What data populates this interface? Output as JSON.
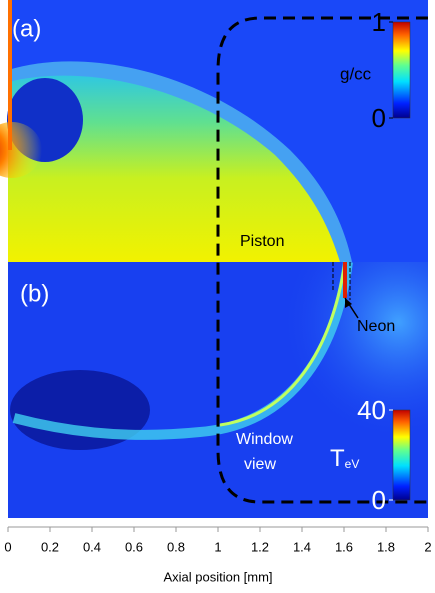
{
  "chart_data": {
    "type": "image",
    "xlabel": "Axial position [mm]",
    "xlim": [
      0,
      2
    ],
    "xticks": [
      0,
      0.2,
      0.4,
      0.6,
      0.8,
      1,
      1.2,
      1.4,
      1.6,
      1.8,
      2
    ],
    "panels": [
      {
        "label": "(a)",
        "colorbar": {
          "label": "g/cc",
          "clim": [
            0,
            1
          ],
          "ticks": [
            0,
            1
          ]
        },
        "annotations": [
          "Piston"
        ]
      },
      {
        "label": "(b)",
        "colorbar": {
          "label": "T",
          "label_sub": "eV",
          "clim": [
            0,
            40
          ],
          "ticks": [
            0,
            40
          ]
        },
        "annotations": [
          "Neon",
          "Window",
          "view"
        ]
      }
    ]
  }
}
